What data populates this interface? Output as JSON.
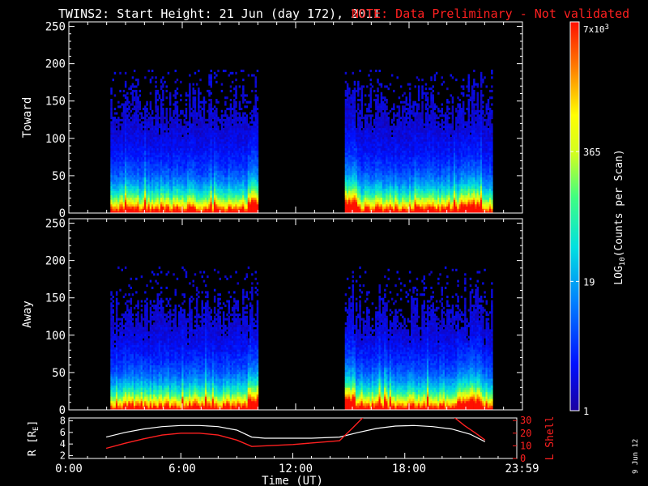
{
  "chart_data": {
    "type": "heatmap",
    "title": "TWINS2: Start Height: 21 Jun (day 172), 2011",
    "note": "NOTE: Data Preliminary - Not validated",
    "note_color": "#ff2020",
    "xlabel": "Time (UT)",
    "x_ticks": [
      "0:00",
      "6:00",
      "12:00",
      "18:00",
      "23:59"
    ],
    "x_tick_hours": [
      0,
      6,
      12,
      18,
      23.98
    ],
    "xlim": [
      0,
      24
    ],
    "panels": [
      {
        "ylabel": "Toward",
        "ylim": [
          0,
          256
        ],
        "y_ticks": [
          0,
          50,
          100,
          150,
          200,
          250
        ],
        "data_intervals_ut": [
          [
            2.2,
            10.0
          ],
          [
            14.6,
            22.4
          ]
        ]
      },
      {
        "ylabel": "Away",
        "ylim": [
          0,
          256
        ],
        "y_ticks": [
          0,
          50,
          100,
          150,
          200,
          250
        ],
        "data_intervals_ut": [
          [
            2.2,
            10.0
          ],
          [
            14.6,
            22.4
          ]
        ]
      }
    ],
    "colorbar": {
      "label": "LOG10(Counts per Scan)",
      "label_base": "LOG",
      "label_sub": "10",
      "label_rest": "(Counts per Scan)",
      "scale": "log",
      "min": 1,
      "max": 7000,
      "ticks": [
        "1",
        "19",
        "365"
      ],
      "top_label_base": "7x10",
      "top_label_exp": "3"
    },
    "ephemeris": {
      "left_label": "R [R",
      "left_label_sub": "E",
      "left_label_end": "]",
      "left_ticks": [
        "2",
        "4",
        "6",
        "8"
      ],
      "left_ylim": [
        1.5,
        8.5
      ],
      "right_label": "L Shell",
      "right_ticks": [
        "0",
        "10",
        "20",
        "30"
      ],
      "right_ylim": [
        0,
        32
      ],
      "right_color": "#ff2020",
      "r_series": {
        "name": "R",
        "color": "#ffffff",
        "x": [
          2.0,
          3.0,
          4.0,
          5.0,
          6.0,
          7.0,
          8.0,
          9.0,
          9.8,
          10.5,
          12.0,
          13.0,
          14.5,
          15.5,
          16.5,
          17.5,
          18.5,
          19.5,
          20.5,
          21.5,
          22.3
        ],
        "y": [
          5.2,
          6.0,
          6.6,
          7.0,
          7.2,
          7.2,
          7.0,
          6.4,
          5.2,
          5.0,
          5.0,
          5.0,
          5.2,
          6.0,
          6.7,
          7.1,
          7.2,
          7.0,
          6.6,
          5.7,
          4.4
        ]
      },
      "l_series": {
        "name": "L Shell",
        "color": "#ff2020",
        "x": [
          2.0,
          3.0,
          4.0,
          5.0,
          6.0,
          7.0,
          8.0,
          9.0,
          9.8,
          12.0,
          14.5,
          15.2,
          15.8
        ],
        "y": [
          8.0,
          12.0,
          15.5,
          18.5,
          20.0,
          20.0,
          18.5,
          14.5,
          9.5,
          11.0,
          14.0,
          24.0,
          33.0
        ],
        "x2": [
          20.6,
          21.2,
          21.8,
          22.3
        ],
        "y2": [
          33.0,
          26.0,
          20.0,
          14.5
        ]
      }
    },
    "footer_date": "9 Jun 12"
  }
}
